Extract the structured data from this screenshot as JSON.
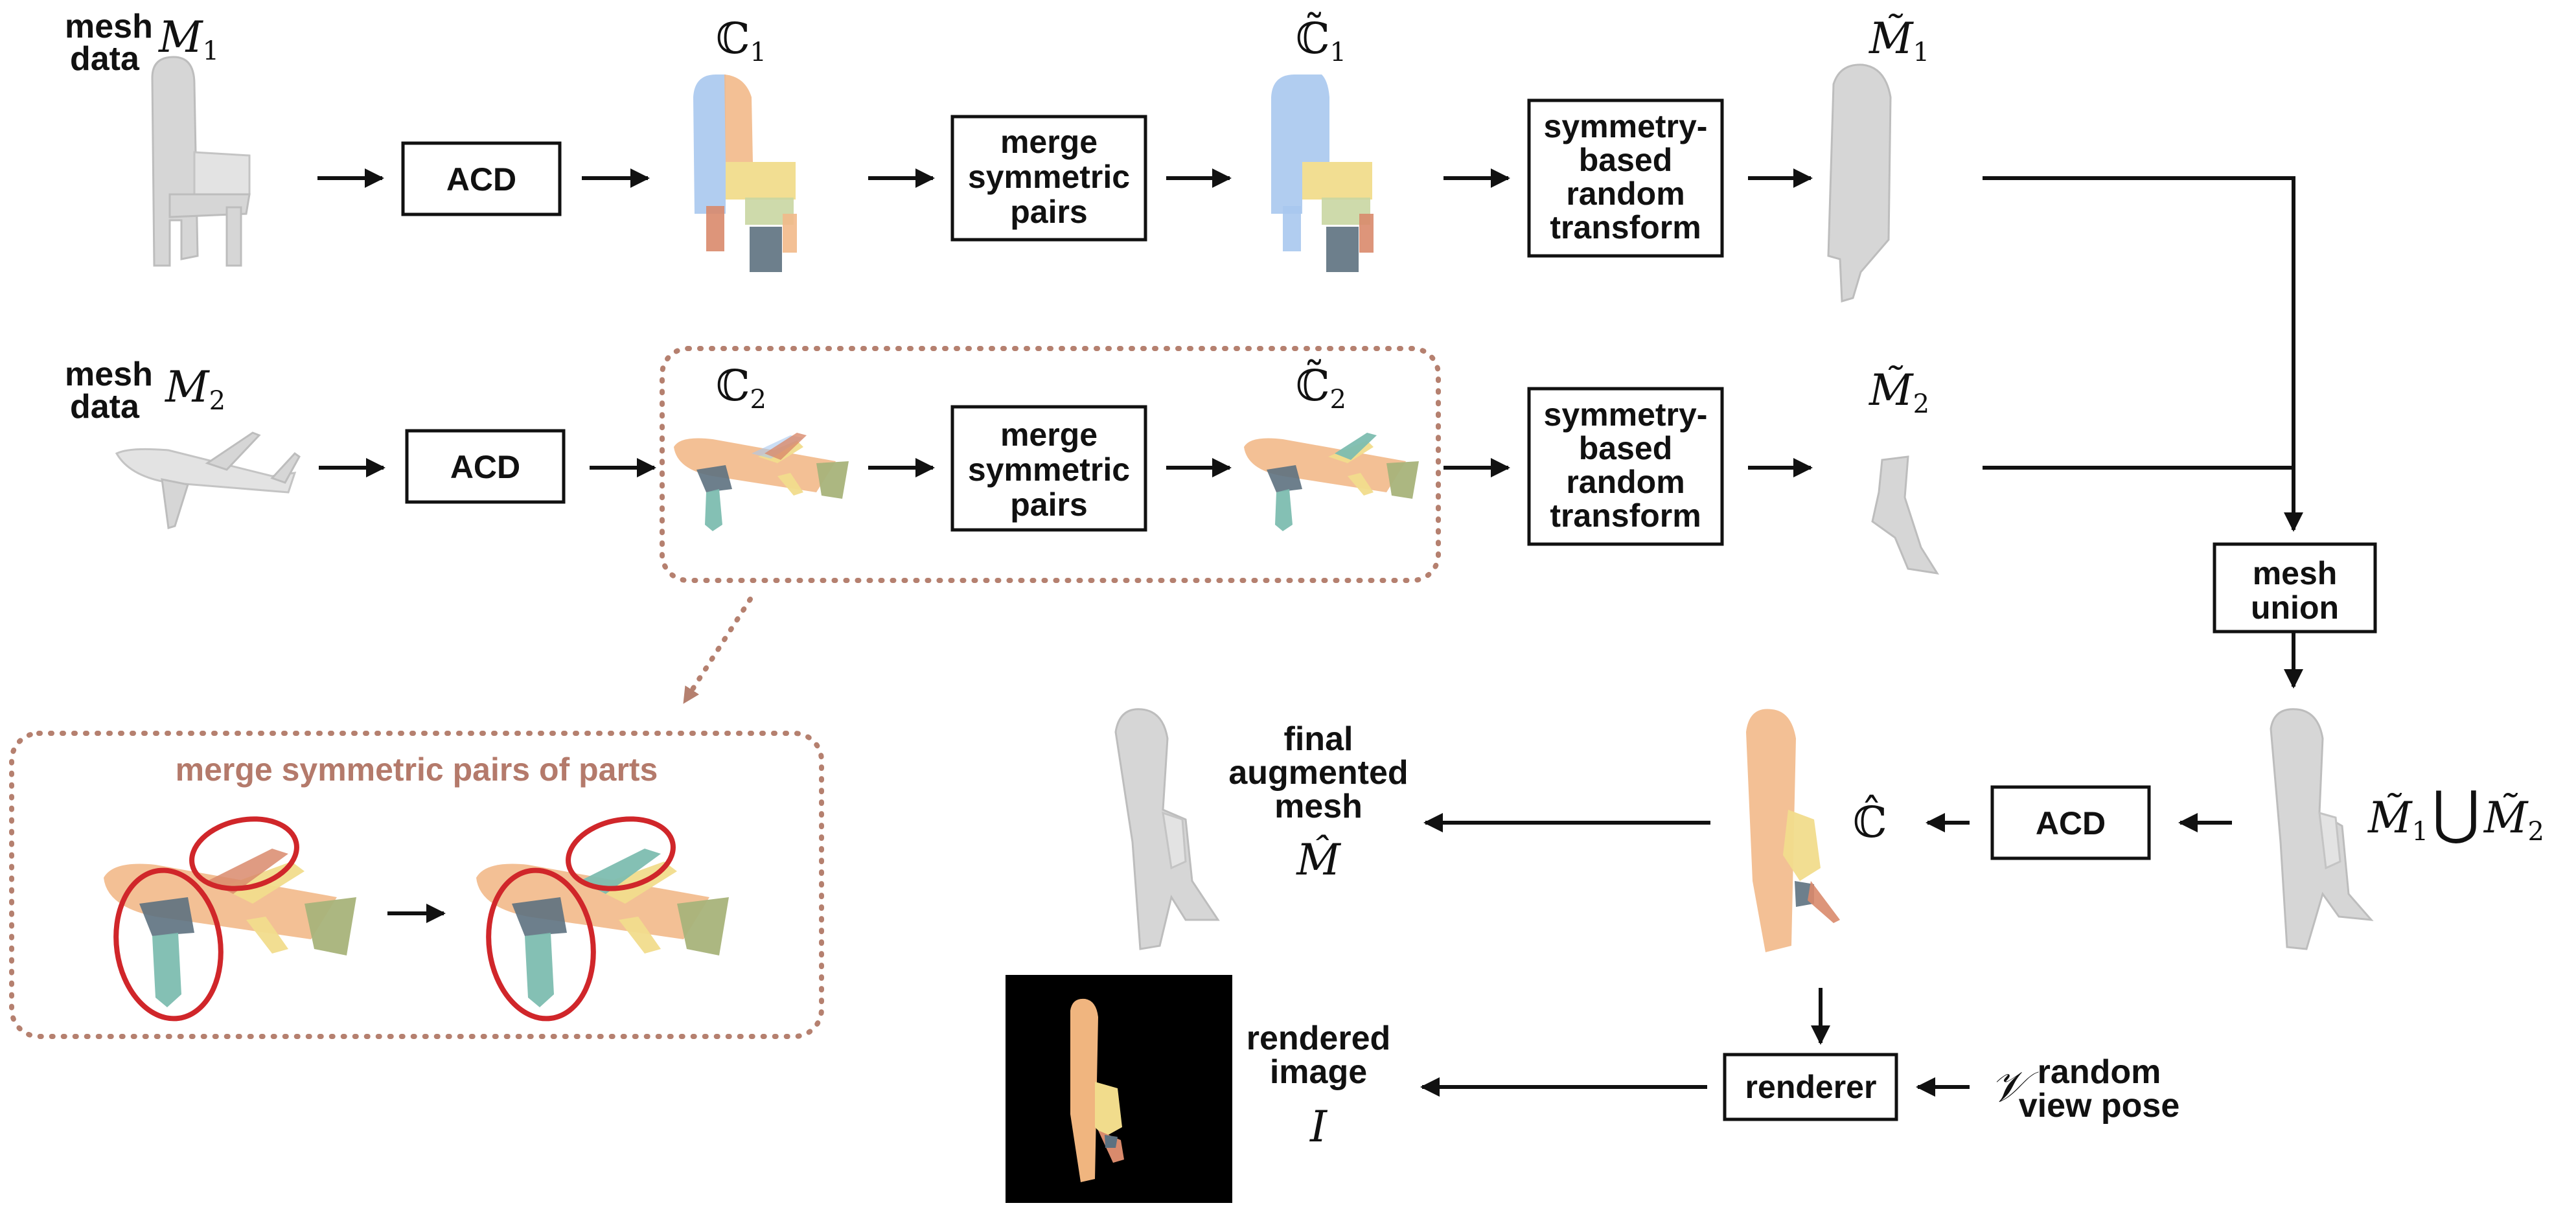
{
  "labels": {
    "mesh_data_1_line1": "mesh",
    "mesh_data_1_line2": "data",
    "mesh_data_2_line1": "mesh",
    "mesh_data_2_line2": "data",
    "M1": "M",
    "M1_sub": "1",
    "M2": "M",
    "M2_sub": "2",
    "C1": "ℂ",
    "C1_sub": "1",
    "C1t": "ℂ̃",
    "C1t_sub": "1",
    "C2": "ℂ",
    "C2_sub": "2",
    "C2t": "ℂ̃",
    "C2t_sub": "2",
    "M1t": "M̃",
    "M1t_sub": "1",
    "M2t": "M̃",
    "M2t_sub": "2",
    "Chat": "ℂ̂",
    "union_left": "M̃",
    "union_left_sub": "1",
    "union_op": "⋃",
    "union_right": "M̃",
    "union_right_sub": "2",
    "final_line1": "final",
    "final_line2": "augmented",
    "final_line3": "mesh",
    "Mhat": "M̂",
    "rendered_line1": "rendered",
    "rendered_line2": "image",
    "I": "I",
    "V": "𝒱",
    "random_line1": "random",
    "random_line2": "view pose"
  },
  "boxes": {
    "acd_1": "ACD",
    "acd_2": "ACD",
    "acd_3": "ACD",
    "merge_1": [
      "merge",
      "symmetric",
      "pairs"
    ],
    "merge_2": [
      "merge",
      "symmetric",
      "pairs"
    ],
    "sym_1": [
      "symmetry-",
      "based",
      "random",
      "transform"
    ],
    "sym_2": [
      "symmetry-",
      "based",
      "random",
      "transform"
    ],
    "mesh_union": [
      "mesh",
      "union"
    ],
    "renderer": "renderer"
  },
  "inset": {
    "title": "merge symmetric pairs of parts"
  },
  "colors": {
    "part_blue": "#a9c8ee",
    "part_orange": "#f2b98a",
    "part_yellow": "#f1dc8c",
    "part_teal": "#7dbdb0",
    "part_slate": "#5d7180",
    "part_red": "#d98a6c",
    "part_green": "#a8b37a",
    "highlight_red": "#d0262a",
    "dotted": "#b5806f"
  }
}
